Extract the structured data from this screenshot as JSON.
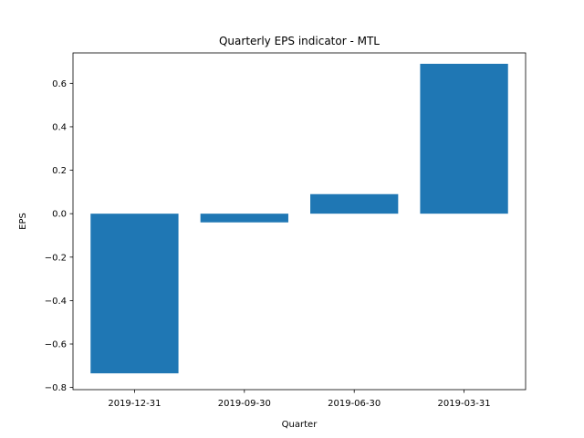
{
  "chart_data": {
    "type": "bar",
    "title": "Quarterly EPS indicator - MTL",
    "xlabel": "Quarter",
    "ylabel": "EPS",
    "categories": [
      "2019-12-31",
      "2019-09-30",
      "2019-06-30",
      "2019-03-31"
    ],
    "values": [
      -0.735,
      -0.04,
      0.09,
      0.69
    ],
    "ylim": [
      -0.81,
      0.74
    ],
    "yticks": [
      -0.8,
      -0.6,
      -0.4,
      -0.2,
      0.0,
      0.2,
      0.4,
      0.6
    ],
    "ytick_labels": [
      "−0.8",
      "−0.6",
      "−0.4",
      "−0.2",
      "0.0",
      "0.2",
      "0.4",
      "0.6"
    ],
    "grid": false,
    "legend": "none",
    "bar_color": "#1f77b4"
  }
}
